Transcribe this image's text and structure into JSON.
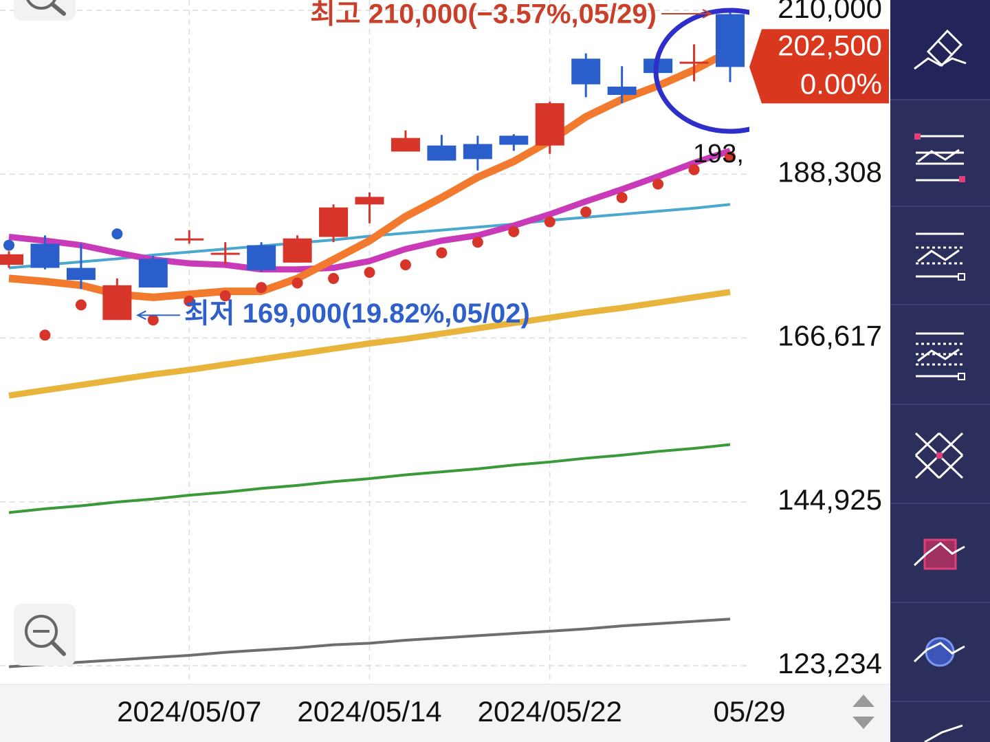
{
  "chart_data": {
    "type": "candlestick",
    "categories": [
      null,
      null,
      null,
      null,
      null,
      "2024/05/07",
      null,
      null,
      null,
      null,
      "2024/05/14",
      null,
      null,
      null,
      null,
      "2024/05/22",
      null,
      null,
      null,
      null,
      "05/29"
    ],
    "open": [
      176300,
      179100,
      175900,
      169000,
      177100,
      179800,
      177900,
      178900,
      176600,
      180000,
      184300,
      191300,
      192100,
      192300,
      193400,
      192100,
      203600,
      199900,
      203600,
      203200,
      209500
    ],
    "close": [
      177700,
      175900,
      174300,
      173600,
      173300,
      179800,
      177900,
      175600,
      179800,
      183900,
      185300,
      193100,
      190100,
      190300,
      192200,
      197700,
      200200,
      198800,
      201700,
      203200,
      202500
    ],
    "high": [
      178100,
      180200,
      179100,
      174500,
      177500,
      180900,
      179300,
      179300,
      180200,
      184300,
      185900,
      194100,
      193500,
      193400,
      193600,
      197900,
      204300,
      202600,
      203600,
      205500,
      210000
    ],
    "low": [
      175900,
      175700,
      173100,
      169000,
      173300,
      179100,
      176300,
      175400,
      176600,
      179300,
      181800,
      191300,
      190100,
      188800,
      191400,
      191000,
      198500,
      197700,
      201700,
      200600,
      200500
    ],
    "up_color": "#d7352a",
    "down_color": "#2a5fcb",
    "lines": [
      {
        "color": "#6e6e6e",
        "width": 4,
        "values": [
          123100,
          123400,
          123700,
          124000,
          124300,
          124600,
          125000,
          125300,
          125600,
          126000,
          126200,
          126600,
          126900,
          127200,
          127500,
          127800,
          128100,
          128500,
          128800,
          129100,
          129400
        ]
      },
      {
        "color": "#3a9a3a",
        "width": 4,
        "values": [
          143500,
          144000,
          144400,
          144900,
          145300,
          145800,
          146200,
          146700,
          147100,
          147600,
          148000,
          148500,
          148900,
          149300,
          149800,
          150200,
          150700,
          151100,
          151600,
          152000,
          152500
        ]
      },
      {
        "color": "#e8b43c",
        "width": 9,
        "values": [
          159000,
          159700,
          160400,
          161100,
          161800,
          162400,
          163100,
          163800,
          164500,
          165200,
          165900,
          166500,
          167200,
          167900,
          168600,
          169300,
          170000,
          170600,
          171300,
          172000,
          172700
        ]
      },
      {
        "color": "#4aa8cf",
        "width": 4,
        "values": [
          175900,
          176300,
          176700,
          177100,
          177600,
          178000,
          178400,
          178800,
          179200,
          179600,
          180100,
          180500,
          180900,
          181300,
          181700,
          182200,
          182600,
          183000,
          183400,
          183800,
          184300
        ]
      },
      {
        "color": "#c93ab8",
        "width": 9,
        "values": [
          180000,
          179500,
          178900,
          177900,
          177000,
          176500,
          176300,
          175700,
          175700,
          175900,
          176800,
          178400,
          179500,
          180200,
          181500,
          183000,
          184700,
          186300,
          188000,
          189800,
          191400
        ]
      },
      {
        "color": "#f27a2e",
        "width": 11,
        "values": [
          174500,
          174100,
          173600,
          172400,
          172000,
          172400,
          172800,
          172800,
          174500,
          177000,
          179500,
          182700,
          185200,
          187900,
          190000,
          192700,
          195900,
          198200,
          200000,
          202100,
          204600
        ]
      }
    ],
    "dots": [
      {
        "color": "#d7352a",
        "values": [
          null,
          167000,
          171000,
          null,
          169000,
          171500,
          172200,
          173300,
          173900,
          174500,
          175300,
          176300,
          177900,
          179300,
          180700,
          182000,
          183300,
          185200,
          187000,
          188900,
          190600
        ]
      },
      {
        "color": "#2a5fcb",
        "values": [
          178900,
          null,
          null,
          180400,
          null,
          null,
          null,
          null,
          null,
          null,
          null,
          null,
          null,
          null,
          null,
          null,
          null,
          null,
          null,
          null,
          null
        ]
      }
    ],
    "ylim": [
      120775,
      211366
    ],
    "yticks": [
      {
        "value": 123234,
        "label": "123,234"
      },
      {
        "value": 144925,
        "label": "144,925"
      },
      {
        "value": 166617,
        "label": "166,617"
      },
      {
        "value": 188308,
        "label": "188,308"
      },
      {
        "value": 210000,
        "label": "210,000"
      }
    ],
    "grid": true,
    "high_marker": {
      "index": 20,
      "value": 210000,
      "label": "최고 210,000(−3.57%,05/29)",
      "color": "#c8402a"
    },
    "low_marker": {
      "index": 3,
      "value": 169000,
      "label": "최저 169,000(19.82%,05/02)",
      "color": "#2f5fc8"
    },
    "price_tag": {
      "value": 202500,
      "label": "202,500",
      "change": "0.00%",
      "color": "#d9381e"
    },
    "cut_label": "193,"
  }
}
